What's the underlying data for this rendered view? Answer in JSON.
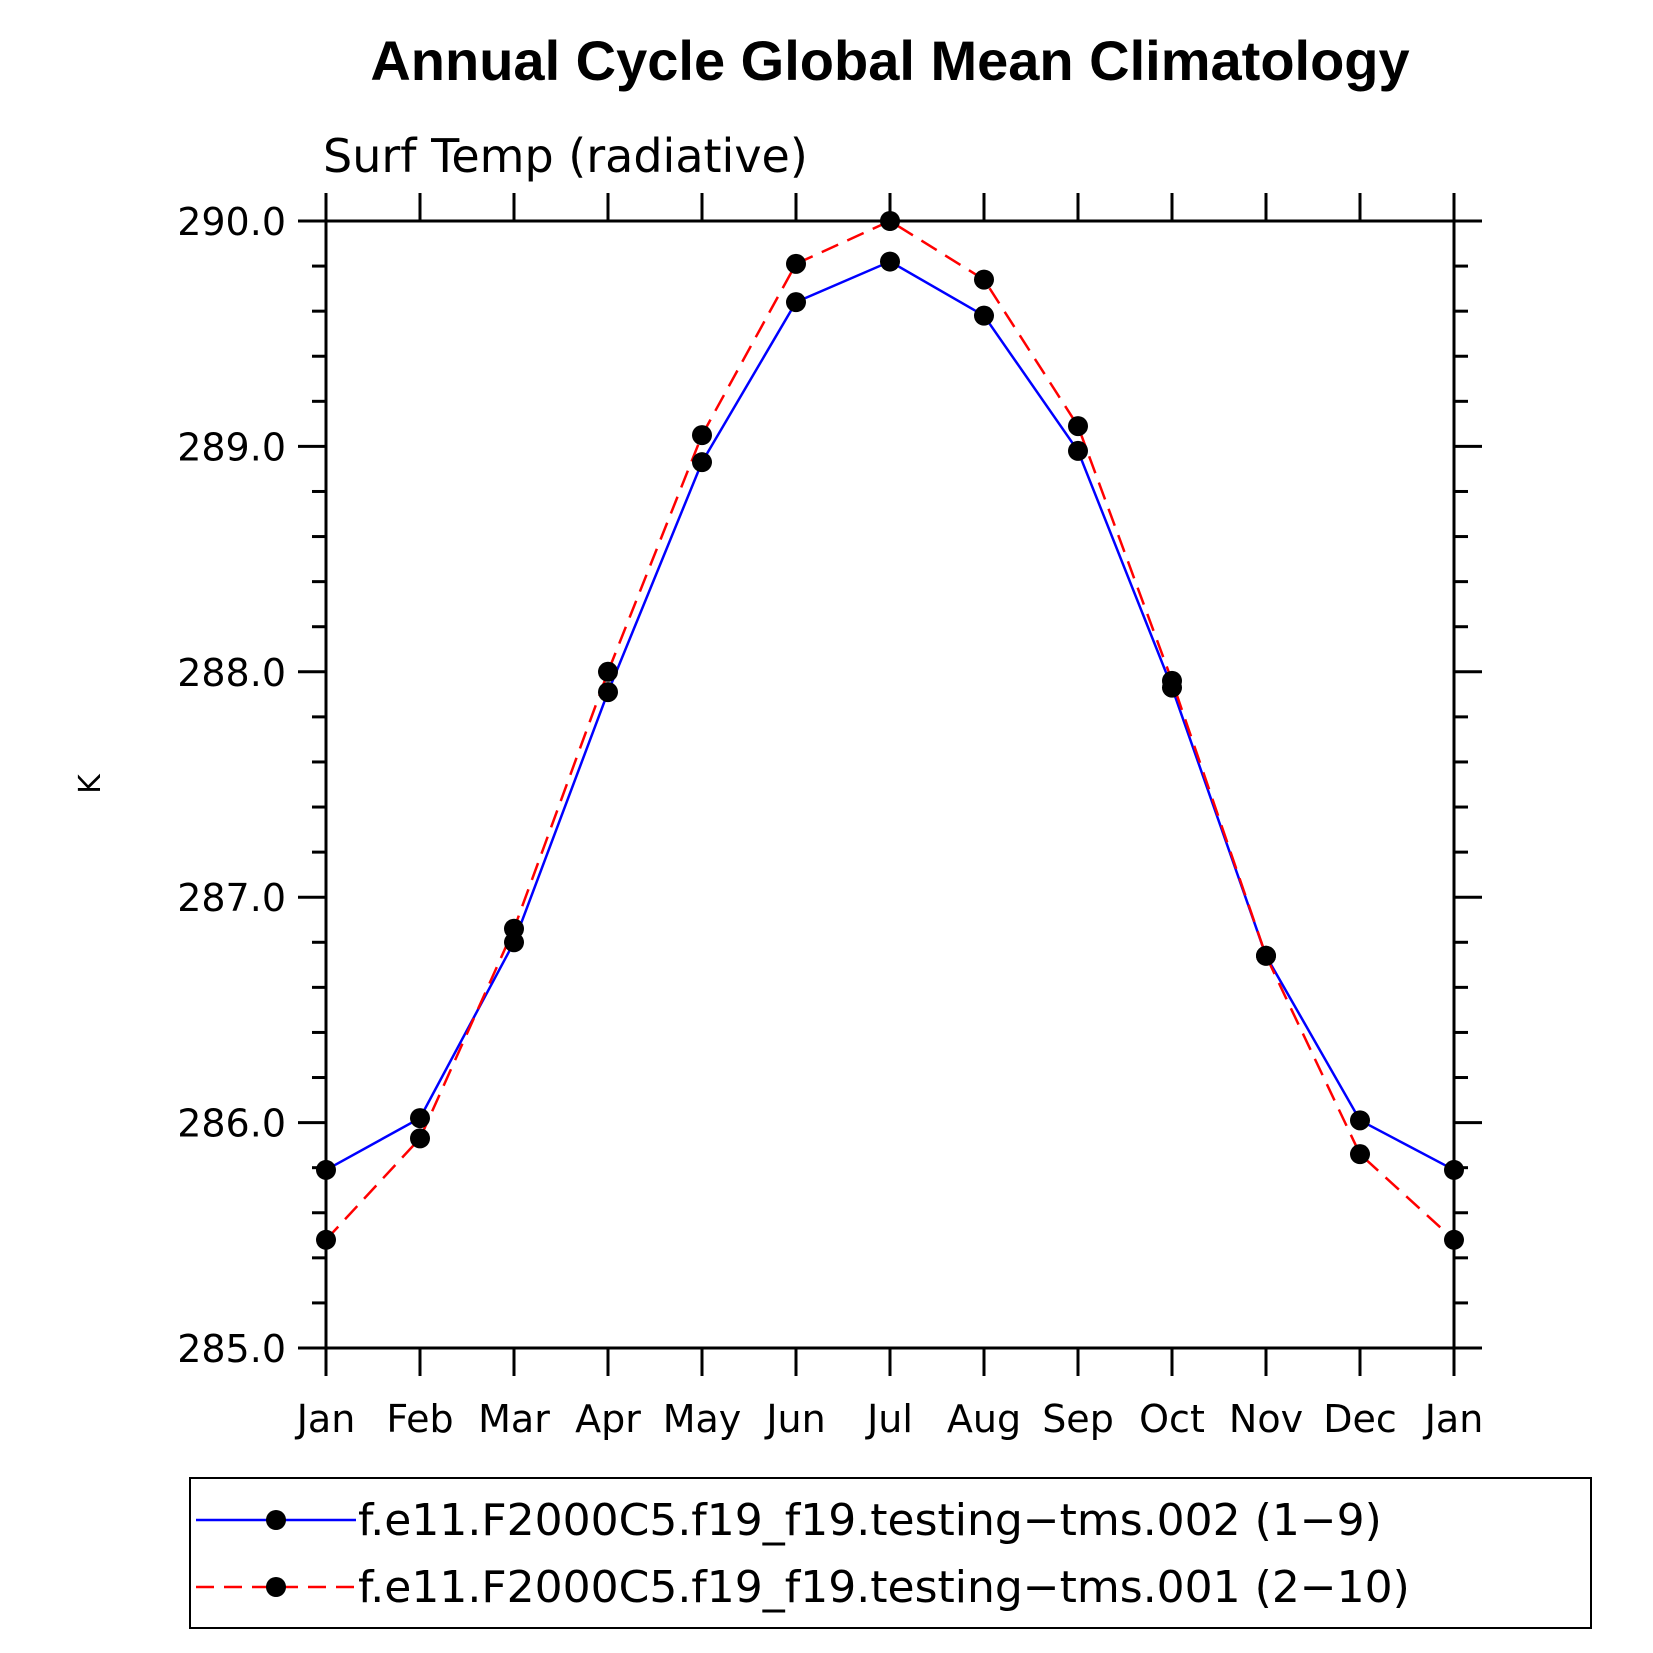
{
  "chart_data": {
    "type": "line",
    "title": "Annual Cycle Global Mean Climatology",
    "subtitle": "Surf Temp (radiative)",
    "ylabel": "K",
    "xlabel": "",
    "categories": [
      "Jan",
      "Feb",
      "Mar",
      "Apr",
      "May",
      "Jun",
      "Jul",
      "Aug",
      "Sep",
      "Oct",
      "Nov",
      "Dec",
      "Jan"
    ],
    "ylim": [
      285.0,
      290.0
    ],
    "yticks": [
      "285.0",
      "286.0",
      "287.0",
      "288.0",
      "289.0",
      "290.0"
    ],
    "grid": false,
    "legend_position": "bottom",
    "series": [
      {
        "name": "f.e11.F2000C5.f19_f19.testing−tms.002 (1−9)",
        "color": "#0000ff",
        "style": "solid",
        "values": [
          285.79,
          286.02,
          286.8,
          287.91,
          288.93,
          289.64,
          289.82,
          289.58,
          288.98,
          287.93,
          286.74,
          286.01,
          285.79
        ]
      },
      {
        "name": "f.e11.F2000C5.f19_f19.testing−tms.001 (2−10)",
        "color": "#ff0000",
        "style": "dashed",
        "values": [
          285.48,
          285.93,
          286.86,
          288.0,
          289.05,
          289.81,
          290.0,
          289.74,
          289.09,
          287.96,
          286.74,
          285.86,
          285.48
        ]
      }
    ]
  }
}
